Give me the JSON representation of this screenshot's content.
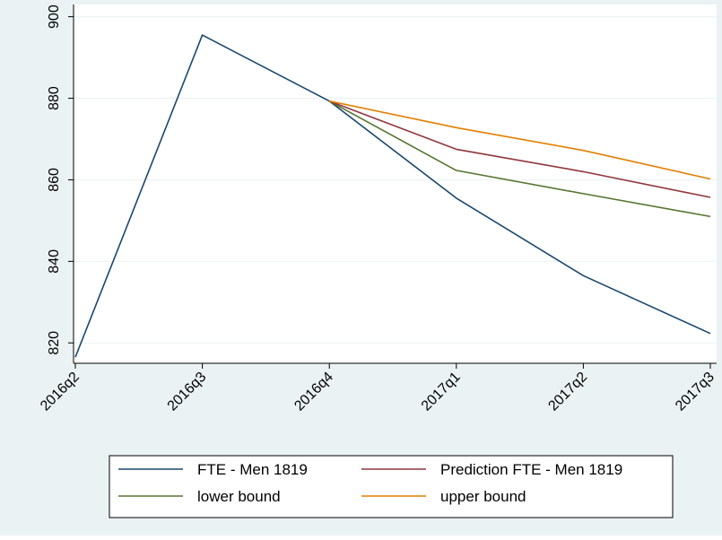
{
  "chart_data": {
    "type": "line",
    "title": "",
    "xlabel": "",
    "ylabel": "",
    "categories": [
      "2016q2",
      "2016q3",
      "2016q4",
      "2017q1",
      "2017q2",
      "2017q3"
    ],
    "ylim": [
      815,
      903
    ],
    "yticks": [
      820,
      840,
      860,
      880,
      900
    ],
    "grid": true,
    "legend_position": "bottom",
    "series": [
      {
        "name": "FTE - Men 1819",
        "color": "#1a476f",
        "values": [
          816.5,
          895.5,
          879.3,
          855.5,
          836.5,
          822.3
        ]
      },
      {
        "name": "Prediction FTE - Men 1819",
        "color": "#90353b",
        "values": [
          null,
          null,
          879.3,
          867.5,
          862.0,
          855.7
        ]
      },
      {
        "name": "lower bound",
        "color": "#55752f",
        "values": [
          null,
          null,
          879.3,
          862.3,
          856.6,
          851.0
        ]
      },
      {
        "name": "upper bound",
        "color": "#e37e00",
        "values": [
          null,
          null,
          879.3,
          872.8,
          867.2,
          860.2
        ]
      }
    ]
  }
}
